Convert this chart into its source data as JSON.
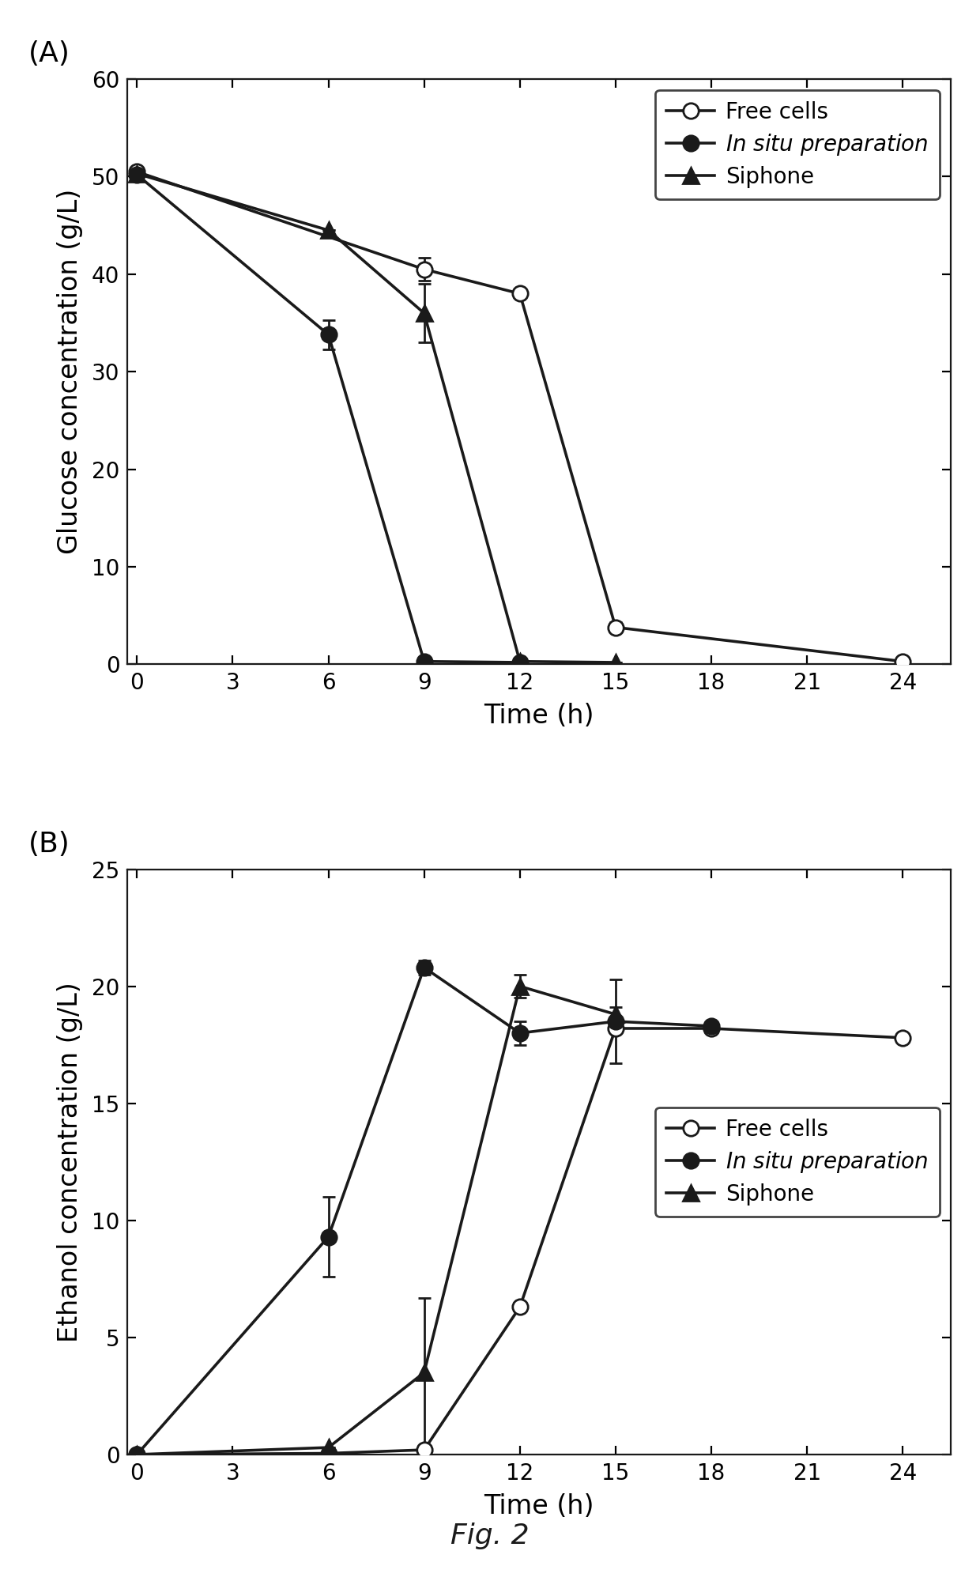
{
  "panel_A": {
    "title": "(A)",
    "ylabel": "Glucose concentration (g/L)",
    "xlabel": "Time (h)",
    "ylim": [
      0,
      60
    ],
    "yticks": [
      0,
      10,
      20,
      30,
      40,
      50,
      60
    ],
    "xlim": [
      -0.3,
      25.5
    ],
    "xticks": [
      0,
      3,
      6,
      9,
      12,
      15,
      18,
      21,
      24
    ],
    "free_cells": {
      "x": [
        0,
        9,
        12,
        15,
        24
      ],
      "y": [
        50.5,
        40.5,
        38.0,
        3.8,
        0.3
      ],
      "yerr": [
        0,
        1.2,
        0,
        0.5,
        0
      ]
    },
    "in_situ": {
      "x": [
        0,
        6,
        9,
        12
      ],
      "y": [
        50.2,
        33.8,
        0.3,
        0.2
      ],
      "yerr": [
        0,
        1.5,
        0,
        0
      ]
    },
    "siphone": {
      "x": [
        0,
        6,
        9,
        12,
        15
      ],
      "y": [
        50.3,
        44.5,
        36.0,
        0.3,
        0.2
      ],
      "yerr": [
        0,
        0,
        3.0,
        0,
        0
      ]
    },
    "legend_loc": "upper right",
    "legend_bbox": null
  },
  "panel_B": {
    "title": "(B)",
    "ylabel": "Ethanol concentration (g/L)",
    "xlabel": "Time (h)",
    "ylim": [
      0,
      25
    ],
    "yticks": [
      0,
      5,
      10,
      15,
      20,
      25
    ],
    "xlim": [
      -0.3,
      25.5
    ],
    "xticks": [
      0,
      3,
      6,
      9,
      12,
      15,
      18,
      21,
      24
    ],
    "free_cells": {
      "x": [
        0,
        6,
        9,
        12,
        15,
        18,
        24
      ],
      "y": [
        0.0,
        0.05,
        0.2,
        6.3,
        18.2,
        18.2,
        17.8
      ],
      "yerr": [
        0,
        0,
        0,
        0,
        0,
        0,
        0
      ]
    },
    "in_situ": {
      "x": [
        0,
        6,
        9,
        12,
        15,
        18
      ],
      "y": [
        0.0,
        9.3,
        20.8,
        18.0,
        18.5,
        18.3
      ],
      "yerr": [
        0,
        1.7,
        0.3,
        0.5,
        1.8,
        0
      ]
    },
    "siphone": {
      "x": [
        0,
        6,
        9,
        12,
        15
      ],
      "y": [
        0.0,
        0.3,
        3.5,
        20.0,
        18.8
      ],
      "yerr": [
        0,
        0,
        3.2,
        0.5,
        0.3
      ]
    },
    "legend_loc": "center right",
    "legend_bbox": null
  },
  "fig_label": "Fig. 2",
  "bg_color": "#ffffff",
  "line_color": "#1a1a1a",
  "marker_size": 7,
  "linewidth": 1.3,
  "capsize": 3,
  "fontsize_label": 12,
  "fontsize_tick": 10,
  "fontsize_legend": 10,
  "fontsize_panel": 13,
  "fontsize_fig_label": 13
}
